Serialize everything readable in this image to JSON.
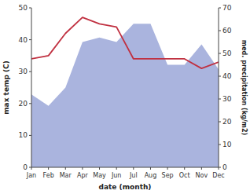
{
  "chart_data": {
    "type": "line",
    "xlabel": "date (month)",
    "ylabel": "max temp (C)",
    "y2label": "med. precipitation (kg/m2)",
    "categories": [
      "Jan",
      "Feb",
      "Mar",
      "Apr",
      "May",
      "Jun",
      "Jul",
      "Aug",
      "Sep",
      "Oct",
      "Nov",
      "Dec"
    ],
    "ylim": [
      0,
      50
    ],
    "yticks": [
      0,
      10,
      20,
      30,
      40,
      50
    ],
    "y2lim": [
      0,
      70
    ],
    "y2ticks": [
      0,
      10,
      20,
      30,
      40,
      50,
      60,
      70
    ],
    "grid": false,
    "series": [
      {
        "type": "area",
        "axis": "y2",
        "color": "#aab4de",
        "values": [
          32,
          27,
          35,
          55,
          57,
          55,
          63,
          63,
          45,
          45,
          54,
          43
        ]
      },
      {
        "type": "line",
        "color": "#c03040",
        "values": [
          34,
          35,
          42,
          47,
          45,
          44,
          34,
          34,
          34,
          34,
          31,
          33
        ]
      }
    ]
  }
}
